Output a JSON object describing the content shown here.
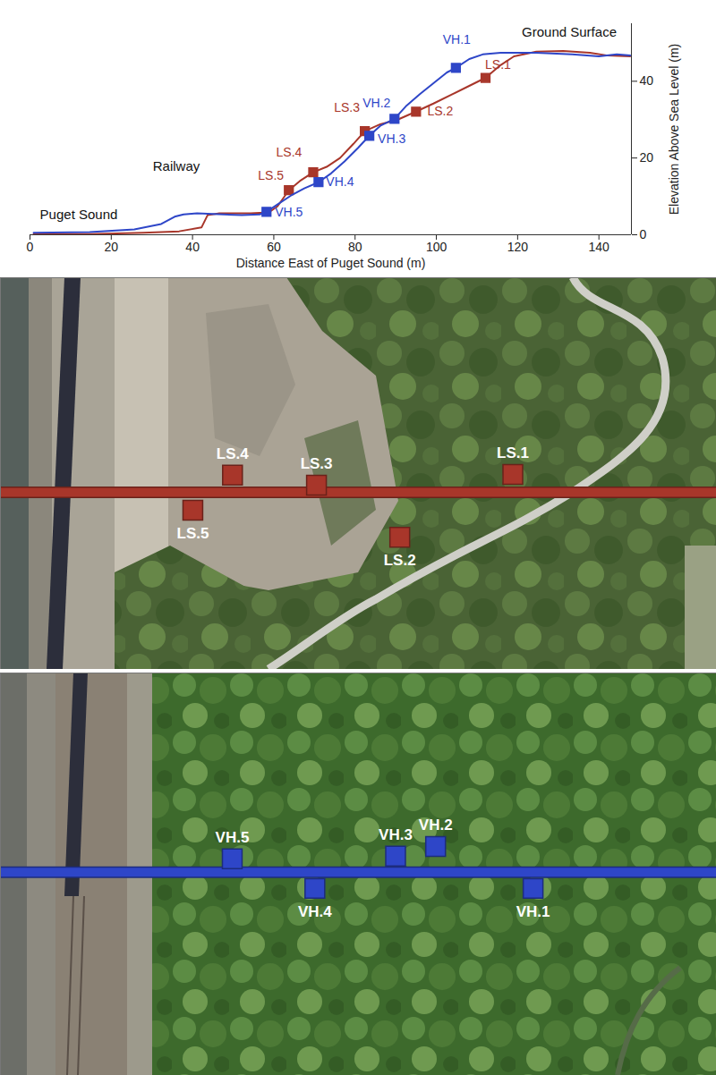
{
  "chart_data": [
    {
      "type": "line",
      "xlabel": "Distance East of Puget Sound (m)",
      "ylabel": "Elevation Above Sea Level (m)",
      "xlim": [
        0,
        148
      ],
      "ylim": [
        0,
        55
      ],
      "xticks": [
        0,
        20,
        40,
        60,
        80,
        100,
        120,
        140
      ],
      "yticks": [
        0,
        20,
        40
      ],
      "annotations": [
        {
          "text": "Puget Sound",
          "x": 12,
          "y": 5.1
        },
        {
          "text": "Railway",
          "x": 36,
          "y": 17.9
        },
        {
          "text": "Ground Surface",
          "x": 132.7,
          "y": 52.8
        }
      ],
      "series": [
        {
          "color": "#a8362a",
          "marker": "square",
          "x": [
            0.9,
            14.7,
            27.9,
            36.7,
            42.2,
            43.7,
            46.6,
            54.3,
            58.7,
            60.9,
            63.7,
            66.4,
            69.7,
            73.0,
            76.3,
            79.6,
            82.4,
            86.2,
            90.5,
            95.0,
            99.3,
            103.7,
            108.1,
            112.1,
            115.8,
            119.1,
            124.6,
            131.2,
            137.8,
            142.2,
            147.7
          ],
          "values": [
            0.2,
            0.2,
            0.5,
            0.9,
            1.9,
            5.1,
            5.6,
            5.6,
            5.8,
            7.4,
            11.6,
            14.0,
            16.3,
            17.7,
            20.0,
            23.7,
            27.0,
            28.8,
            30.0,
            32.1,
            34.2,
            36.5,
            38.8,
            40.9,
            44.2,
            46.5,
            47.7,
            47.9,
            47.4,
            46.7,
            46.5
          ],
          "points": {
            "labels": [
              "LS.1",
              "LS.2",
              "LS.3",
              "LS.4",
              "LS.5"
            ],
            "x": [
              112.1,
              95.0,
              82.4,
              69.7,
              63.7
            ],
            "values": [
              40.9,
              32.1,
              27.0,
              16.3,
              11.6
            ]
          }
        },
        {
          "color": "#2e46c8",
          "marker": "square",
          "x": [
            0.9,
            14.7,
            25.7,
            32.3,
            35.6,
            37.8,
            41.1,
            47.7,
            52.1,
            56.5,
            58.2,
            60.9,
            64.2,
            67.5,
            71.0,
            74.1,
            77.4,
            80.7,
            83.5,
            86.2,
            89.7,
            92.7,
            96.0,
            99.3,
            102.6,
            104.8,
            108.1,
            111.4,
            115.8,
            124.6,
            133.4,
            140.0,
            144.4,
            147.7
          ],
          "values": [
            0.5,
            0.7,
            1.4,
            2.8,
            4.7,
            5.3,
            5.6,
            5.3,
            5.1,
            5.3,
            6.0,
            7.9,
            10.2,
            12.1,
            13.7,
            16.0,
            19.1,
            22.6,
            25.8,
            28.4,
            30.2,
            33.7,
            36.7,
            39.5,
            42.3,
            43.5,
            45.8,
            47.0,
            47.4,
            47.4,
            47.0,
            46.5,
            47.0,
            46.7
          ],
          "points": {
            "labels": [
              "VH.1",
              "VH.2",
              "VH.3",
              "VH.4",
              "VH.5"
            ],
            "x": [
              104.8,
              89.7,
              83.5,
              71.0,
              58.2
            ],
            "values": [
              43.5,
              30.2,
              25.8,
              13.7,
              6.0
            ]
          }
        }
      ]
    },
    {
      "type": "scatter",
      "tick_labels": false,
      "xlim": [
        34.6,
        142.9
      ],
      "ylim": [
        -26.8,
        32.5
      ],
      "transect_y": 0,
      "series": [
        {
          "color": "#a8362a",
          "marker": "square",
          "labels": [
            "LS.1",
            "LS.2",
            "LS.3",
            "LS.4",
            "LS.5"
          ],
          "x": [
            112.1,
            95.0,
            82.4,
            69.7,
            63.7
          ],
          "values": [
            2.7,
            -6.8,
            1.1,
            2.6,
            -2.7
          ]
        }
      ]
    },
    {
      "type": "scatter",
      "tick_labels": false,
      "xlim": [
        22.3,
        133.2
      ],
      "ylim": [
        -31.5,
        30.9
      ],
      "transect_y": 0,
      "series": [
        {
          "color": "#2e46c8",
          "marker": "square",
          "labels": [
            "VH.1",
            "VH.2",
            "VH.3",
            "VH.4",
            "VH.5"
          ],
          "x": [
            104.8,
            89.7,
            83.5,
            71.0,
            58.2
          ],
          "values": [
            -2.5,
            4.0,
            2.5,
            -2.5,
            2.1
          ]
        }
      ]
    }
  ]
}
